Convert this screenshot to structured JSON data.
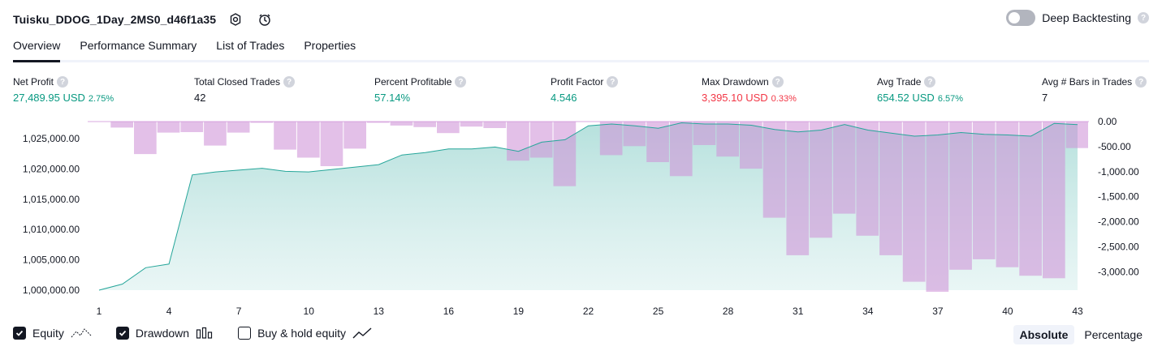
{
  "header": {
    "strategy_name": "Tuisku_DDOG_1Day_2MS0_d46f1a35",
    "deep_backtesting_label": "Deep Backtesting",
    "deep_backtesting_on": false,
    "help_glyph": "?"
  },
  "tabs": [
    {
      "label": "Overview",
      "active": true
    },
    {
      "label": "Performance Summary",
      "active": false
    },
    {
      "label": "List of Trades",
      "active": false
    },
    {
      "label": "Properties",
      "active": false
    }
  ],
  "metrics": [
    {
      "label": "Net Profit",
      "value": "27,489.95 USD",
      "pct": "2.75%",
      "color": "green"
    },
    {
      "label": "Total Closed Trades",
      "value": "42",
      "pct": "",
      "color": "plain"
    },
    {
      "label": "Percent Profitable",
      "value": "57.14%",
      "pct": "",
      "color": "green"
    },
    {
      "label": "Profit Factor",
      "value": "4.546",
      "pct": "",
      "color": "green"
    },
    {
      "label": "Max Drawdown",
      "value": "3,395.10 USD",
      "pct": "0.33%",
      "color": "red"
    },
    {
      "label": "Avg Trade",
      "value": "654.52 USD",
      "pct": "6.57%",
      "color": "green"
    },
    {
      "label": "Avg # Bars in Trades",
      "value": "7",
      "pct": "",
      "color": "plain"
    }
  ],
  "legend": {
    "equity_label": "Equity",
    "equity_checked": true,
    "drawdown_label": "Drawdown",
    "drawdown_checked": true,
    "buyhold_label": "Buy & hold equity",
    "buyhold_checked": false
  },
  "modes": {
    "absolute": "Absolute",
    "percentage": "Percentage",
    "active": "absolute"
  },
  "chart_data": {
    "type": "area",
    "x_ticks": [
      "1",
      "4",
      "7",
      "10",
      "13",
      "16",
      "19",
      "22",
      "25",
      "28",
      "31",
      "34",
      "37",
      "40",
      "43"
    ],
    "left_ticks": [
      {
        "label": "1,000,000.00",
        "value": 1000000
      },
      {
        "label": "1,005,000.00",
        "value": 1005000
      },
      {
        "label": "1,010,000.00",
        "value": 1010000
      },
      {
        "label": "1,015,000.00",
        "value": 1015000
      },
      {
        "label": "1,020,000.00",
        "value": 1020000
      },
      {
        "label": "1,025,000.00",
        "value": 1025000
      }
    ],
    "right_ticks": [
      {
        "label": "0.00",
        "value": 0
      },
      {
        "label": "-500.00",
        "value": -500
      },
      {
        "label": "-1,000.00",
        "value": -1000
      },
      {
        "label": "-1,500.00",
        "value": -1500
      },
      {
        "label": "-2,000.00",
        "value": -2000
      },
      {
        "label": "-2,500.00",
        "value": -2500
      },
      {
        "label": "-3,000.00",
        "value": -3000
      }
    ],
    "equity_ylim": [
      1000000,
      1027800
    ],
    "drawdown_ylim": [
      -3400,
      0
    ],
    "series": [
      {
        "name": "Equity",
        "x": [
          1,
          2,
          3,
          4,
          5,
          6,
          7,
          8,
          9,
          10,
          11,
          12,
          13,
          14,
          15,
          16,
          17,
          18,
          19,
          20,
          21,
          22,
          23,
          24,
          25,
          26,
          27,
          28,
          29,
          30,
          31,
          32,
          33,
          34,
          35,
          36,
          37,
          38,
          39,
          40,
          41,
          42,
          43
        ],
        "values": [
          1000000,
          1001000,
          1003700,
          1004300,
          1019000,
          1019500,
          1019800,
          1020100,
          1019600,
          1019500,
          1019900,
          1020300,
          1020700,
          1022300,
          1022700,
          1023300,
          1023300,
          1023600,
          1022900,
          1024400,
          1024800,
          1027100,
          1027400,
          1027100,
          1026700,
          1027600,
          1027400,
          1027400,
          1027200,
          1026500,
          1026100,
          1026400,
          1027300,
          1026400,
          1025900,
          1025400,
          1025600,
          1026000,
          1025700,
          1025600,
          1025400,
          1027500,
          1027300
        ],
        "color": "#26a69a"
      },
      {
        "name": "Drawdown",
        "x": [
          1,
          2,
          3,
          4,
          5,
          6,
          7,
          8,
          9,
          10,
          11,
          12,
          13,
          14,
          15,
          16,
          17,
          18,
          19,
          20,
          21,
          22,
          23,
          24,
          25,
          26,
          27,
          28,
          29,
          30,
          31,
          32,
          33,
          34,
          35,
          36,
          37,
          38,
          39,
          40,
          41,
          42,
          43
        ],
        "values": [
          0,
          -120,
          -650,
          -220,
          -210,
          -480,
          -220,
          -20,
          -560,
          -720,
          -890,
          -540,
          -20,
          -80,
          -110,
          -230,
          -100,
          -130,
          -780,
          -720,
          -1290,
          0,
          -670,
          -490,
          -810,
          -1090,
          -470,
          -700,
          -940,
          -1920,
          -2670,
          -2320,
          -1840,
          -2280,
          -2670,
          -3200,
          -3400,
          -2960,
          -2750,
          -2910,
          -3080,
          -3130,
          -530
        ],
        "color": "#ce93d8"
      }
    ]
  }
}
